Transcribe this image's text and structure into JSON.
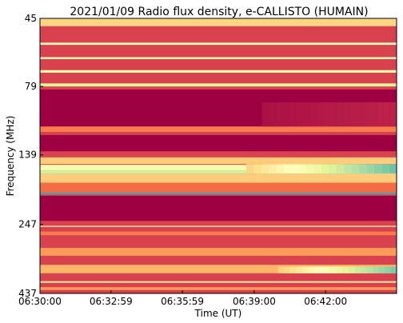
{
  "chart_data": {
    "type": "heatmap",
    "title": "2021/01/09  Radio flux density, e-CALLISTO (HUMAIN)",
    "xlabel": "Time (UT)",
    "ylabel": "Frequency (MHz)",
    "x_tick_labels": [
      "06:30:00",
      "06:32:59",
      "06:35:59",
      "06:39:00",
      "06:42:00"
    ],
    "x_ticks_seconds_from_start": [
      0,
      179,
      359,
      540,
      720
    ],
    "x_range_seconds_from_start": [
      0,
      899
    ],
    "y_tick_labels": [
      "45",
      "79",
      "139",
      "247",
      "437"
    ],
    "y_ticks": [
      45,
      79,
      139,
      247,
      437
    ],
    "y_range": [
      45,
      437
    ],
    "y_inverted": true,
    "colormap": [
      "#9e0142",
      "#d53e4f",
      "#f46d43",
      "#fdae61",
      "#fee08b",
      "#ffffbf",
      "#e6f598",
      "#abdda4",
      "#66c2a5",
      "#3288bd"
    ],
    "background_level": 0.12,
    "bands": [
      {
        "f0": 45,
        "f1": 48,
        "level": 0.42
      },
      {
        "f0": 55,
        "f1": 56,
        "level": 0.55
      },
      {
        "f0": 62,
        "f1": 63,
        "level": 0.58
      },
      {
        "f0": 69,
        "f1": 70.5,
        "level": 0.62
      },
      {
        "f0": 77,
        "f1": 79,
        "level": 0.68
      },
      {
        "f0": 81,
        "f1": 110,
        "level": 0.0
      },
      {
        "f0": 110,
        "f1": 115,
        "level": 0.25
      },
      {
        "f0": 118,
        "f1": 135,
        "level": 0.0
      },
      {
        "f0": 142,
        "f1": 150,
        "level": 0.4
      },
      {
        "f0": 151,
        "f1": 158,
        "level": 0.6
      },
      {
        "f0": 158,
        "f1": 163,
        "level": 0.7
      },
      {
        "f0": 163,
        "f1": 175,
        "level": 0.4
      },
      {
        "f0": 175,
        "f1": 190,
        "level": 0.22
      },
      {
        "f0": 190,
        "f1": 193,
        "level": 0.95
      },
      {
        "f0": 195,
        "f1": 240,
        "level": 0.0
      },
      {
        "f0": 250,
        "f1": 252,
        "level": 0.55
      },
      {
        "f0": 262,
        "f1": 270,
        "level": 0.25
      },
      {
        "f0": 300,
        "f1": 320,
        "level": 0.3
      },
      {
        "f0": 345,
        "f1": 370,
        "level": 0.35
      },
      {
        "f0": 395,
        "f1": 400,
        "level": 0.5
      },
      {
        "f0": 415,
        "f1": 425,
        "level": 0.3
      }
    ],
    "bright_features": [
      {
        "f0": 150,
        "f1": 162,
        "t0": 520,
        "t1": 899,
        "level": 0.88
      },
      {
        "f0": 350,
        "f1": 370,
        "t0": 600,
        "t1": 899,
        "level": 0.85
      },
      {
        "f0": 90,
        "f1": 110,
        "t0": 560,
        "t1": 899,
        "level": 0.06
      }
    ]
  }
}
